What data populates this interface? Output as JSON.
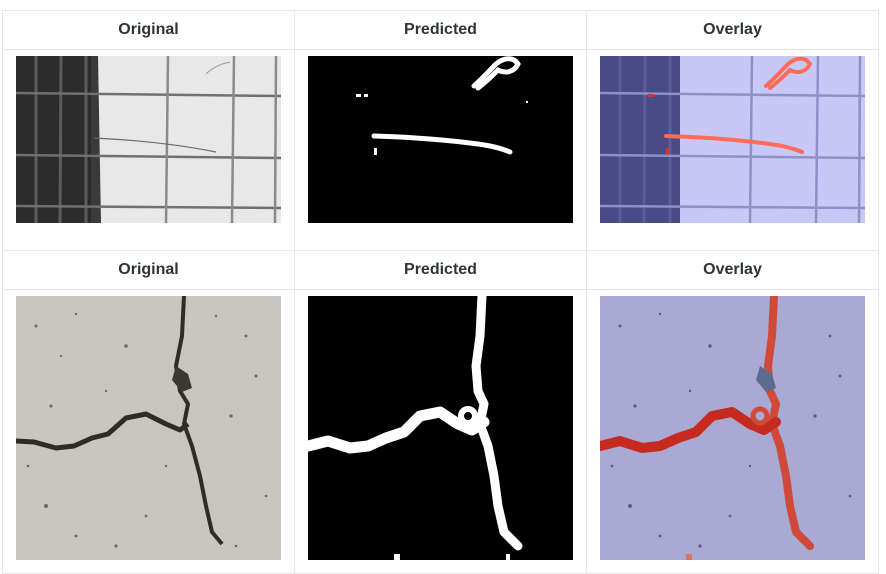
{
  "rows": [
    {
      "headers": {
        "original": "Original",
        "predicted": "Predicted",
        "overlay": "Overlay"
      },
      "sample": "wall tiles with thin crack",
      "colors": {
        "image_bg_left": "#2b2b2b",
        "image_bg_right": "#e9e9e9",
        "mask": "#ffffff",
        "mask_bg": "#000000",
        "overlay_tint": "#b7b8f2",
        "overlay_crack": "#ff6b57"
      }
    },
    {
      "headers": {
        "original": "Original",
        "predicted": "Predicted",
        "overlay": "Overlay"
      },
      "sample": "concrete surface with branching crack",
      "colors": {
        "image_bg": "#c9c7bf",
        "crack": "#2d2b27",
        "mask": "#ffffff",
        "mask_bg": "#000000",
        "overlay_tint": "#a9abd6",
        "overlay_crack": "#c62a1f"
      }
    }
  ]
}
